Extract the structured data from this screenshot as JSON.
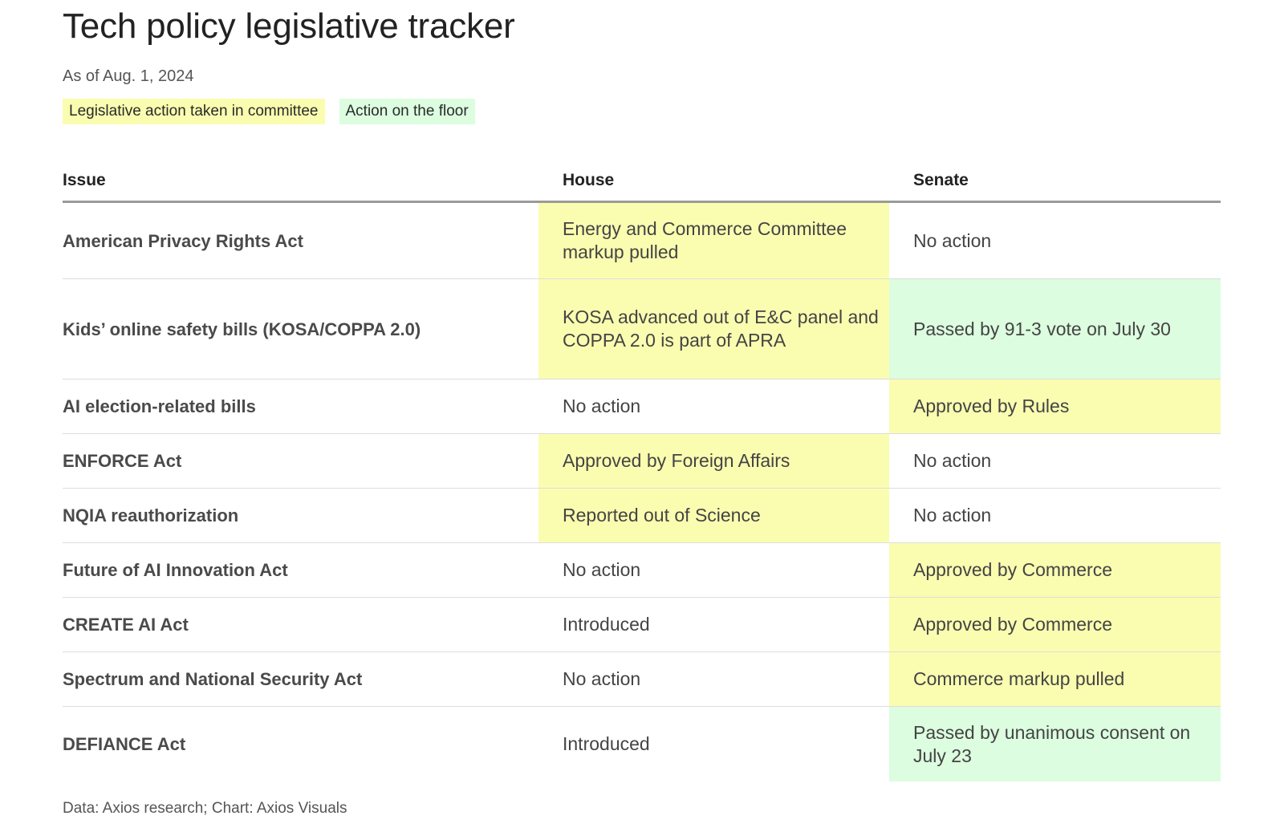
{
  "chart_data": {
    "type": "table",
    "title": "Tech policy legislative tracker",
    "subtitle": "As of Aug. 1, 2024",
    "legend": [
      {
        "label": "Legislative action taken in committee",
        "status": "committee",
        "color": "#fafdb0"
      },
      {
        "label": "Action on the floor",
        "status": "floor",
        "color": "#dcfddf"
      }
    ],
    "columns": [
      "Issue",
      "House",
      "Senate"
    ],
    "rows": [
      {
        "issue": "American Privacy Rights Act",
        "house": "Energy and Commerce Committee markup pulled",
        "house_status": "committee",
        "senate": "No action",
        "senate_status": "none"
      },
      {
        "issue": "Kids’ online safety bills (KOSA/COPPA 2.0)",
        "house": "KOSA advanced out of E&C panel and COPPA 2.0 is part of APRA",
        "house_status": "committee",
        "senate": "Passed by 91-3 vote on July 30",
        "senate_status": "floor"
      },
      {
        "issue": "AI election-related bills",
        "house": "No action",
        "house_status": "none",
        "senate": "Approved by Rules",
        "senate_status": "committee"
      },
      {
        "issue": "ENFORCE Act",
        "house": "Approved by Foreign Affairs",
        "house_status": "committee",
        "senate": "No action",
        "senate_status": "none"
      },
      {
        "issue": "NQIA reauthorization",
        "house": "Reported out of Science",
        "house_status": "committee",
        "senate": "No action",
        "senate_status": "none"
      },
      {
        "issue": "Future of AI Innovation Act",
        "house": "No action",
        "house_status": "none",
        "senate": "Approved by Commerce",
        "senate_status": "committee"
      },
      {
        "issue": "CREATE AI Act",
        "house": "Introduced",
        "house_status": "none",
        "senate": "Approved by Commerce",
        "senate_status": "committee"
      },
      {
        "issue": "Spectrum and National Security Act",
        "house": "No action",
        "house_status": "none",
        "senate": "Commerce markup pulled",
        "senate_status": "committee"
      },
      {
        "issue": "DEFIANCE Act",
        "house": "Introduced",
        "house_status": "none",
        "senate": "Passed by unanimous consent on July 23",
        "senate_status": "floor"
      }
    ],
    "source": "Data: Axios research; Chart: Axios Visuals"
  }
}
